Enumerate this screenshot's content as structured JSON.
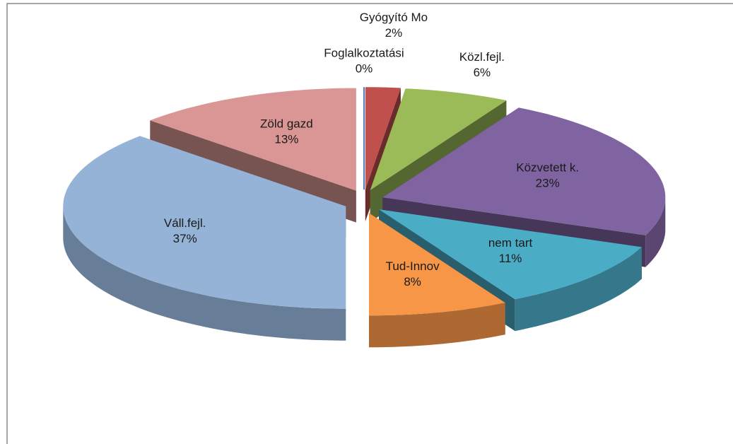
{
  "chart_data": {
    "type": "pie3d",
    "categories": [
      "Foglalkoztatási",
      "Gyógyító Mo",
      "Közl.fejl.",
      "Közvetett k.",
      "nem tart",
      "Tud-Innov",
      "Váll.fejl.",
      "Zöld gazd"
    ],
    "values": [
      0,
      2,
      6,
      23,
      11,
      8,
      37,
      13
    ],
    "value_labels": [
      "0%",
      "2%",
      "6%",
      "23%",
      "11%",
      "8%",
      "37%",
      "13%"
    ],
    "colors": [
      "#4f81bd",
      "#c0504d",
      "#9bbb59",
      "#8064a2",
      "#4bacc6",
      "#f79646",
      "#95b3d7",
      "#d99694"
    ]
  }
}
